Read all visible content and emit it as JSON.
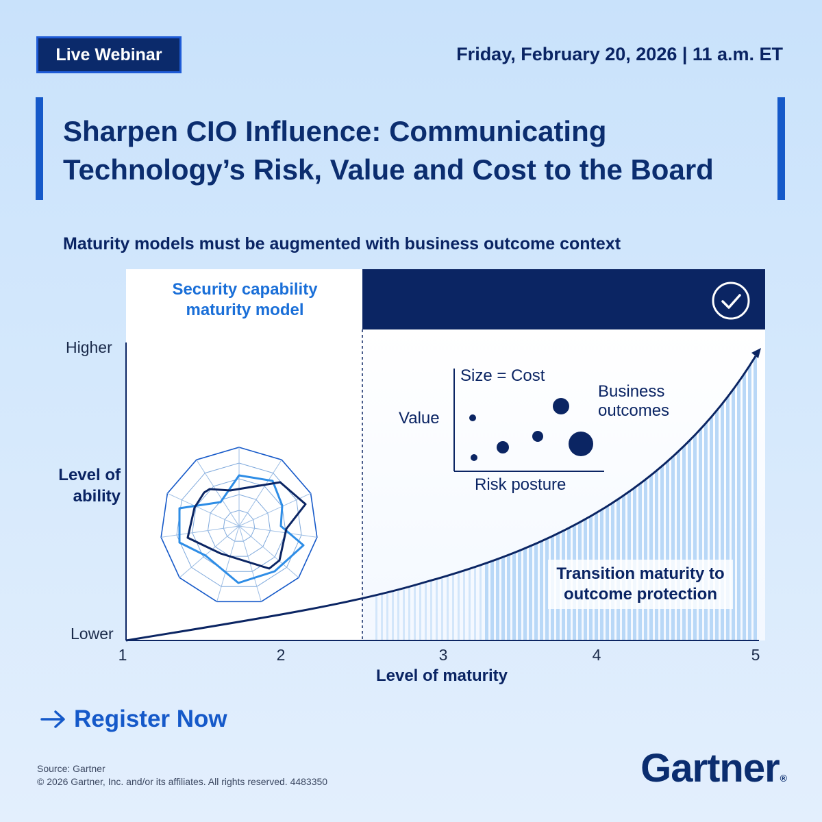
{
  "header": {
    "badge_label": "Live Webinar",
    "event_date": "Friday, February 20, 2026 | 11 a.m. ET"
  },
  "headline": {
    "line1": "Sharpen CIO Influence: Communicating",
    "line2": "Technology’s Risk, Value and Cost to the Board"
  },
  "subhead": "Maturity models must be augmented with business outcome context",
  "diagram": {
    "left_panel_label_line1": "Security capability",
    "left_panel_label_line2": "maturity model",
    "right_header_icon": "check-circle-icon",
    "y_axis": {
      "title_line1": "Level of",
      "title_line2": "ability",
      "top_label": "Higher",
      "bottom_label": "Lower"
    },
    "x_axis": {
      "title": "Level of maturity",
      "ticks": [
        "1",
        "2",
        "3",
        "4",
        "5"
      ]
    },
    "inset": {
      "size_legend": "Size = Cost",
      "y_label": "Value",
      "x_label": "Risk posture",
      "annotation_line1": "Business",
      "annotation_line2": "outcomes"
    },
    "transition_line1": "Transition maturity to",
    "transition_line2": "outcome protection"
  },
  "cta": {
    "arrow_icon": "arrow-right-icon",
    "label": "Register Now"
  },
  "footer": {
    "source": "Source: Gartner",
    "copyright": "© 2026 Gartner, Inc. and/or its affiliates. All rights reserved. 4483350"
  },
  "brand": {
    "name": "Gartner",
    "trademark": "®"
  },
  "colors": {
    "navy": "#0b2563",
    "blue": "#1559c9",
    "light_blue": "#2e8de6",
    "stripe": "#b9d8f7",
    "background": "#d4e8fc"
  }
}
